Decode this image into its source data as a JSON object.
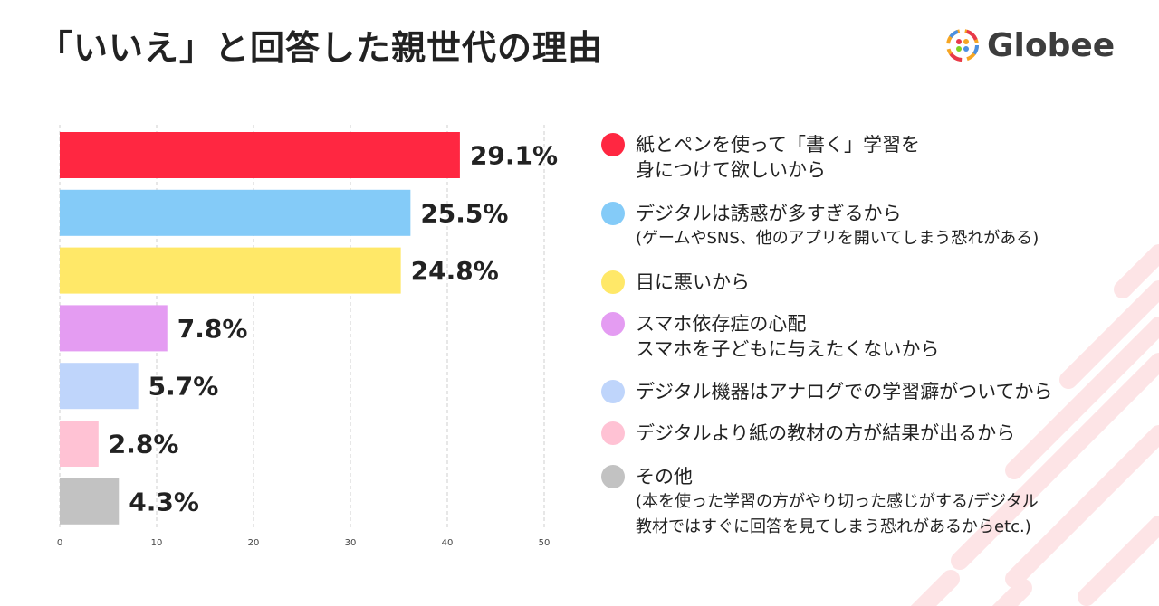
{
  "title": "「いいえ」と回答した親世代の理由",
  "brand": {
    "name": "Globee"
  },
  "colors": {
    "bar1": "#ff2741",
    "bar2": "#84cbf8",
    "bar3": "#ffe868",
    "bar4": "#e49cf2",
    "bar5": "#bfd5fb",
    "bar6": "#ffc2d4",
    "bar7": "#c2c2c2",
    "deco": "#fde4e6"
  },
  "legend": [
    {
      "lines": [
        "紙とペンを使って「書く」学習を",
        "身につけて欲しいから"
      ],
      "sub": []
    },
    {
      "lines": [
        "デジタルは誘惑が多すぎるから"
      ],
      "sub": [
        "(ゲームやSNS、他のアプリを開いてしまう恐れがある)"
      ]
    },
    {
      "lines": [
        "目に悪いから"
      ],
      "sub": []
    },
    {
      "lines": [
        "スマホ依存症の心配",
        "スマホを子どもに与えたくないから"
      ],
      "sub": []
    },
    {
      "lines": [
        "デジタル機器はアナログでの学習癖がついてから"
      ],
      "sub": []
    },
    {
      "lines": [
        "デジタルより紙の教材の方が結果が出るから"
      ],
      "sub": []
    },
    {
      "lines": [
        "その他"
      ],
      "sub": [
        "(本を使った学習の方がやり切った感じがする/デジタル",
        "教材ではすぐに回答を見てしまう恐れがあるからetc.)"
      ]
    }
  ],
  "chart_data": {
    "type": "bar",
    "orientation": "horizontal",
    "title": "「いいえ」と回答した親世代の理由",
    "categories": [
      "紙とペンを使って「書く」学習を身につけて欲しいから",
      "デジタルは誘惑が多すぎるから",
      "目に悪いから",
      "スマホ依存症の心配 スマホを子どもに与えたくないから",
      "デジタル機器はアナログでの学習癖がついてから",
      "デジタルより紙の教材の方が結果が出るから",
      "その他"
    ],
    "values": [
      41.3,
      36.2,
      35.2,
      11.1,
      8.1,
      4.0,
      6.1
    ],
    "data_labels": [
      "29.1%",
      "25.5%",
      "24.8%",
      "7.8%",
      "5.7%",
      "2.8%",
      "4.3%"
    ],
    "xlim": [
      0,
      50
    ],
    "xticks": [
      "0",
      "10",
      "20",
      "30",
      "40",
      "50"
    ],
    "grid": true
  }
}
